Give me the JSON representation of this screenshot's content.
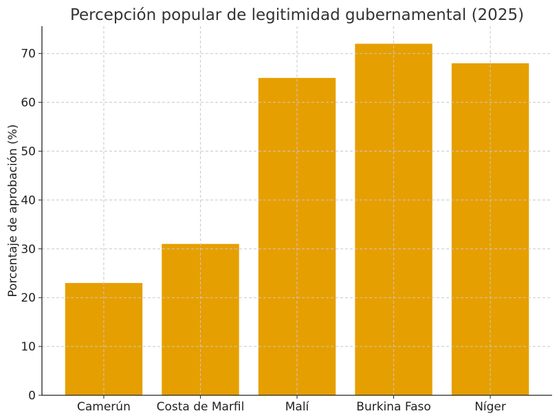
{
  "chart_data": {
    "type": "bar",
    "title": "Percepción popular de legitimidad gubernamental (2025)",
    "xlabel": "",
    "ylabel": "Porcentaje de aprobación (%)",
    "categories": [
      "Camerún",
      "Costa de Marfil",
      "Malí",
      "Burkina Faso",
      "Níger"
    ],
    "values": [
      23,
      31,
      65,
      72,
      68
    ],
    "ylim": [
      0,
      75.6
    ],
    "yticks": [
      0,
      10,
      20,
      30,
      40,
      50,
      60,
      70
    ],
    "grid": true,
    "bar_color": "#E69F00"
  }
}
